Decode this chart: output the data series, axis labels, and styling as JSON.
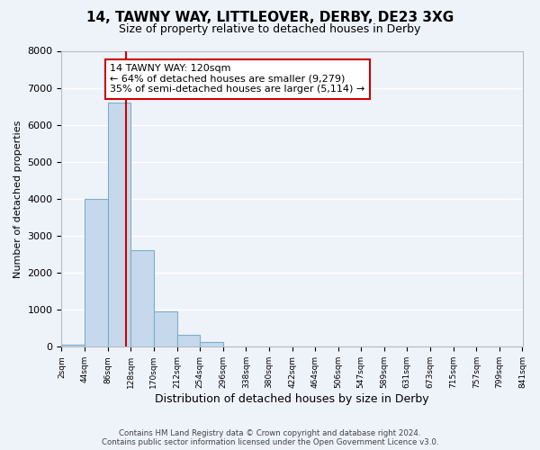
{
  "title": "14, TAWNY WAY, LITTLEOVER, DERBY, DE23 3XG",
  "subtitle": "Size of property relative to detached houses in Derby",
  "xlabel": "Distribution of detached houses by size in Derby",
  "ylabel": "Number of detached properties",
  "bin_labels": [
    "2sqm",
    "44sqm",
    "86sqm",
    "128sqm",
    "170sqm",
    "212sqm",
    "254sqm",
    "296sqm",
    "338sqm",
    "380sqm",
    "422sqm",
    "464sqm",
    "506sqm",
    "547sqm",
    "589sqm",
    "631sqm",
    "673sqm",
    "715sqm",
    "757sqm",
    "799sqm",
    "841sqm"
  ],
  "bar_values": [
    50,
    4000,
    6600,
    2600,
    950,
    320,
    120,
    0,
    0,
    0,
    0,
    0,
    0,
    0,
    0,
    0,
    0,
    0,
    0,
    0
  ],
  "bin_edges": [
    2,
    44,
    86,
    128,
    170,
    212,
    254,
    296,
    338,
    380,
    422,
    464,
    506,
    547,
    589,
    631,
    673,
    715,
    757,
    799,
    841
  ],
  "bar_color": "#c6d9ec",
  "bar_edge_color": "#7aaecb",
  "property_size": 120,
  "vline_color": "#cc0000",
  "annotation_line1": "14 TAWNY WAY: 120sqm",
  "annotation_line2": "← 64% of detached houses are smaller (9,279)",
  "annotation_line3": "35% of semi-detached houses are larger (5,114) →",
  "annotation_box_color": "#ffffff",
  "annotation_box_edge_color": "#cc0000",
  "ylim": [
    0,
    8000
  ],
  "yticks": [
    0,
    1000,
    2000,
    3000,
    4000,
    5000,
    6000,
    7000,
    8000
  ],
  "footer_line1": "Contains HM Land Registry data © Crown copyright and database right 2024.",
  "footer_line2": "Contains public sector information licensed under the Open Government Licence v3.0.",
  "bg_color": "#eef2f9",
  "grid_color": "#ffffff",
  "title_fontsize": 11,
  "subtitle_fontsize": 9
}
